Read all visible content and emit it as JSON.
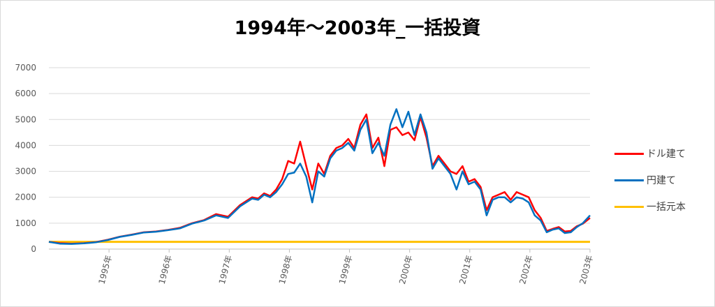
{
  "chart_data": {
    "type": "line",
    "title": "1994年～2003年_一括投資",
    "xlabel": "",
    "ylabel": "",
    "ylim": [
      0,
      7000
    ],
    "yticks": [
      0,
      1000,
      2000,
      3000,
      4000,
      5000,
      6000,
      7000
    ],
    "xlim": [
      1994.62,
      2003.62
    ],
    "xticks": [
      {
        "x": 1995.62,
        "label": "1995年"
      },
      {
        "x": 1996.62,
        "label": "1996年"
      },
      {
        "x": 1997.62,
        "label": "1997年"
      },
      {
        "x": 1998.62,
        "label": "1998年"
      },
      {
        "x": 1999.62,
        "label": "1999年"
      },
      {
        "x": 2000.62,
        "label": "2000年"
      },
      {
        "x": 2001.62,
        "label": "2001年"
      },
      {
        "x": 2002.62,
        "label": "2002年"
      },
      {
        "x": 2003.62,
        "label": "2003年"
      }
    ],
    "grid": true,
    "legend_position": "right",
    "series": [
      {
        "name": "ドル建て",
        "color": "#ff0000",
        "x": [
          1994.62,
          1994.8,
          1995.0,
          1995.2,
          1995.4,
          1995.6,
          1995.8,
          1996.0,
          1996.2,
          1996.4,
          1996.6,
          1996.8,
          1997.0,
          1997.2,
          1997.4,
          1997.6,
          1997.8,
          1998.0,
          1998.1,
          1998.2,
          1998.3,
          1998.4,
          1998.5,
          1998.6,
          1998.7,
          1998.8,
          1998.9,
          1999.0,
          1999.1,
          1999.2,
          1999.3,
          1999.4,
          1999.5,
          1999.6,
          1999.7,
          1999.8,
          1999.9,
          2000.0,
          2000.1,
          2000.2,
          2000.3,
          2000.4,
          2000.5,
          2000.6,
          2000.7,
          2000.8,
          2000.9,
          2001.0,
          2001.1,
          2001.2,
          2001.3,
          2001.4,
          2001.5,
          2001.6,
          2001.7,
          2001.8,
          2001.9,
          2002.0,
          2002.1,
          2002.2,
          2002.3,
          2002.4,
          2002.5,
          2002.6,
          2002.7,
          2002.8,
          2002.9,
          2003.0,
          2003.1,
          2003.2,
          2003.3,
          2003.4,
          2003.5,
          2003.62
        ],
        "values": [
          280,
          230,
          210,
          230,
          270,
          360,
          480,
          560,
          650,
          680,
          740,
          820,
          1000,
          1120,
          1350,
          1250,
          1700,
          2000,
          1950,
          2150,
          2050,
          2300,
          2700,
          3400,
          3300,
          4150,
          3200,
          2300,
          3300,
          2900,
          3600,
          3900,
          4000,
          4250,
          3900,
          4800,
          5200,
          3900,
          4300,
          3200,
          4600,
          4700,
          4400,
          4500,
          4200,
          5100,
          4300,
          3200,
          3600,
          3300,
          3000,
          2900,
          3200,
          2600,
          2700,
          2400,
          1500,
          2000,
          2100,
          2200,
          1900,
          2200,
          2100,
          2000,
          1500,
          1200,
          700,
          780,
          850,
          680,
          700,
          880,
          980,
          1200
        ]
      },
      {
        "name": "円建て",
        "color": "#0070c0",
        "x": [
          1994.62,
          1994.8,
          1995.0,
          1995.2,
          1995.4,
          1995.6,
          1995.8,
          1996.0,
          1996.2,
          1996.4,
          1996.6,
          1996.8,
          1997.0,
          1997.2,
          1997.4,
          1997.6,
          1997.8,
          1998.0,
          1998.1,
          1998.2,
          1998.3,
          1998.4,
          1998.5,
          1998.6,
          1998.7,
          1998.8,
          1998.9,
          1999.0,
          1999.1,
          1999.2,
          1999.3,
          1999.4,
          1999.5,
          1999.6,
          1999.7,
          1999.8,
          1999.9,
          2000.0,
          2000.1,
          2000.2,
          2000.3,
          2000.4,
          2000.5,
          2000.6,
          2000.7,
          2000.8,
          2000.9,
          2001.0,
          2001.1,
          2001.2,
          2001.3,
          2001.4,
          2001.5,
          2001.6,
          2001.7,
          2001.8,
          2001.9,
          2002.0,
          2002.1,
          2002.2,
          2002.3,
          2002.4,
          2002.5,
          2002.6,
          2002.7,
          2002.8,
          2002.9,
          2003.0,
          2003.1,
          2003.2,
          2003.3,
          2003.4,
          2003.5,
          2003.62
        ],
        "values": [
          280,
          210,
          200,
          220,
          260,
          350,
          470,
          550,
          640,
          670,
          730,
          800,
          980,
          1100,
          1300,
          1200,
          1650,
          1950,
          1900,
          2100,
          2000,
          2200,
          2500,
          2900,
          2950,
          3300,
          2800,
          1800,
          3000,
          2800,
          3500,
          3800,
          3900,
          4100,
          3800,
          4600,
          5000,
          3700,
          4100,
          3600,
          4800,
          5400,
          4700,
          5300,
          4400,
          5200,
          4500,
          3100,
          3500,
          3200,
          2900,
          2300,
          3000,
          2500,
          2600,
          2300,
          1300,
          1900,
          2000,
          2000,
          1800,
          2000,
          1950,
          1800,
          1300,
          1100,
          650,
          750,
          800,
          620,
          650,
          850,
          1000,
          1300
        ]
      },
      {
        "name": "一括元本",
        "color": "#ffc000",
        "x": [
          1994.62,
          2003.62
        ],
        "values": [
          280,
          280
        ]
      }
    ]
  }
}
